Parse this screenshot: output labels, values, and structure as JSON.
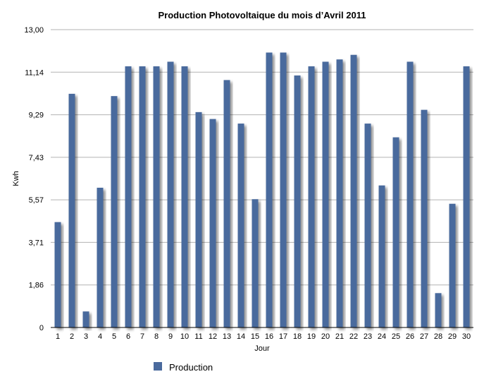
{
  "chart_data": {
    "type": "bar",
    "title": "Production Photovoltaique du mois d’Avril 2011",
    "xlabel": "Jour",
    "ylabel": "Kwh",
    "ylim": [
      0,
      13.0
    ],
    "yticks": [
      "0",
      "1,86",
      "3,71",
      "5,57",
      "7,43",
      "9,29",
      "11,14",
      "13,00"
    ],
    "grid": true,
    "legend_position": "bottom",
    "categories": [
      "1",
      "2",
      "3",
      "4",
      "5",
      "6",
      "7",
      "8",
      "9",
      "10",
      "11",
      "12",
      "13",
      "14",
      "15",
      "16",
      "17",
      "18",
      "19",
      "20",
      "21",
      "22",
      "23",
      "24",
      "25",
      "26",
      "27",
      "28",
      "29",
      "30"
    ],
    "series": [
      {
        "name": "Production",
        "color": "#4a6a9d",
        "values": [
          4.6,
          10.2,
          0.7,
          6.1,
          10.1,
          11.4,
          11.4,
          11.4,
          11.6,
          11.4,
          9.4,
          9.1,
          10.8,
          8.9,
          5.6,
          12.0,
          12.0,
          11.0,
          11.4,
          11.6,
          11.7,
          11.9,
          8.9,
          6.2,
          8.3,
          11.6,
          9.5,
          1.5,
          5.4,
          11.4
        ]
      }
    ]
  }
}
